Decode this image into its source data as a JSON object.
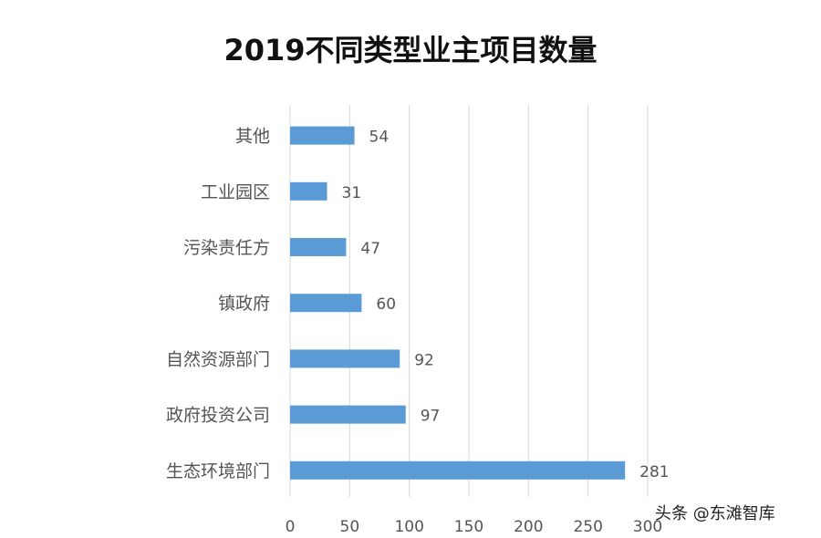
{
  "chart_data": {
    "type": "bar",
    "orientation": "horizontal",
    "title": "2019不同类型业主项目数量",
    "categories": [
      "其他",
      "工业园区",
      "污染责任方",
      "镇政府",
      "自然资源部门",
      "政府投资公司",
      "生态环境部门"
    ],
    "values": [
      54,
      31,
      47,
      60,
      92,
      97,
      281
    ],
    "xlim": [
      0,
      300
    ],
    "xticks": [
      "0",
      "50",
      "100",
      "150",
      "200",
      "250",
      "300"
    ],
    "grid": "vertical",
    "bar_color": "#5B9BD5",
    "data_labels": true
  },
  "watermark": "头条 @东滩智库"
}
